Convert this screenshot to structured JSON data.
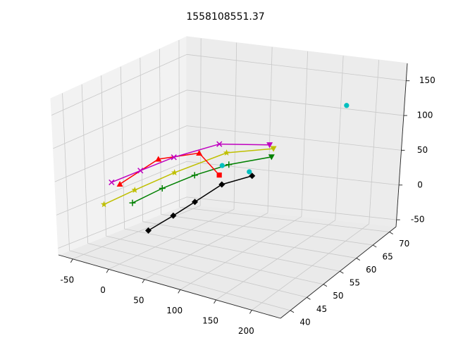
{
  "chart_data": {
    "type": "line3d",
    "title": "1558108551.37",
    "xlim": [
      -70,
      240
    ],
    "ylim": [
      37,
      72
    ],
    "zlim": [
      -60,
      175
    ],
    "xticks": [
      -50,
      0,
      50,
      100,
      150,
      200
    ],
    "yticks": [
      40,
      45,
      50,
      55,
      60,
      65,
      70
    ],
    "zticks": [
      -50,
      0,
      50,
      100,
      150
    ],
    "grid": true,
    "series": [
      {
        "color": "#000000",
        "marker": "D",
        "end_marker": "D",
        "linestyle": "solid",
        "x": [
          42,
          77,
          107,
          144,
          185
        ],
        "y": [
          40,
          40,
          40,
          40,
          40
        ],
        "z": [
          3,
          36,
          66,
          104,
          130
        ]
      },
      {
        "color": "#008000",
        "marker": "+",
        "end_marker": "v",
        "linestyle": "solid",
        "x": [
          -5,
          37,
          82,
          129,
          187
        ],
        "y": [
          45,
          45,
          45,
          45,
          45
        ],
        "z": [
          17,
          50,
          82,
          111,
          139
        ]
      },
      {
        "color": "#bfbf00",
        "marker": "*",
        "end_marker": "v",
        "linestyle": "solid",
        "x": [
          -61,
          -17,
          39,
          111,
          175
        ],
        "y": [
          48,
          48,
          48,
          48,
          48
        ],
        "z": [
          -7,
          25,
          65,
          113,
          136
        ]
      },
      {
        "color": "#ff0000",
        "marker": "^",
        "end_marker": "s",
        "linestyle": "solid",
        "x": [
          -59,
          -4,
          53,
          81
        ],
        "y": [
          52,
          52,
          52,
          52
        ],
        "z": [
          14,
          63,
          85,
          59
        ]
      },
      {
        "color": "#bf00bf",
        "marker": "x",
        "end_marker": "v",
        "linestyle": "solid",
        "x": [
          -60,
          -19,
          28,
          91,
          160
        ],
        "y": [
          50,
          50,
          50,
          50,
          50
        ],
        "z": [
          21,
          48,
          79,
          114,
          130
        ]
      },
      {
        "color": "#00bfbf",
        "marker": "o",
        "end_marker": "o",
        "linestyle": "none",
        "x": [
          95,
          157,
          192
        ],
        "y": [
          50,
          45,
          65
        ],
        "z": [
          83,
          108,
          136
        ]
      }
    ]
  }
}
